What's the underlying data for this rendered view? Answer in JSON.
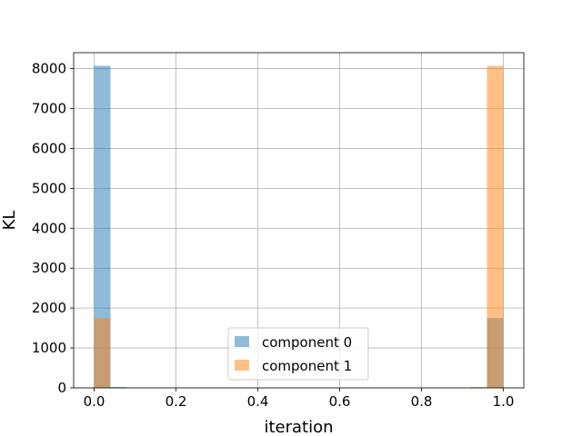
{
  "chart_data": {
    "type": "bar",
    "title": "",
    "xlabel": "iteration",
    "ylabel": "KL",
    "xlim": [
      -0.05,
      1.05
    ],
    "ylim": [
      0,
      8400
    ],
    "xticks": [
      "0.0",
      "0.2",
      "0.4",
      "0.6",
      "0.8",
      "1.0"
    ],
    "yticks": [
      "0",
      "1000",
      "2000",
      "3000",
      "4000",
      "5000",
      "6000",
      "7000",
      "8000"
    ],
    "grid": true,
    "legend_position": "bottom-center",
    "bin_width": 0.04,
    "series": [
      {
        "name": "component 0",
        "color": "#1f77b4",
        "bins": [
          {
            "x0": 0.0,
            "x1": 0.04,
            "value": 8070
          },
          {
            "x0": 0.04,
            "x1": 0.08,
            "value": 20
          },
          {
            "x0": 0.96,
            "x1": 1.0,
            "value": 1750
          }
        ]
      },
      {
        "name": "component 1",
        "color": "#ff7f0e",
        "bins": [
          {
            "x0": 0.0,
            "x1": 0.04,
            "value": 1750
          },
          {
            "x0": 0.92,
            "x1": 0.96,
            "value": 20
          },
          {
            "x0": 0.96,
            "x1": 1.0,
            "value": 8070
          }
        ]
      }
    ]
  }
}
